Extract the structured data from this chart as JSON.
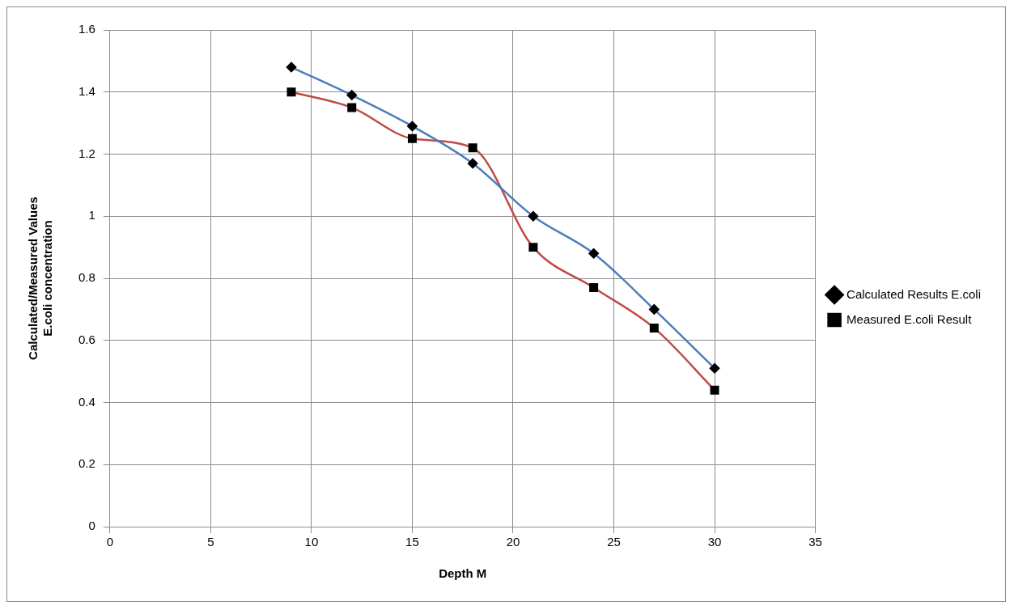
{
  "chart_data": {
    "type": "line",
    "xlabel": "Depth M",
    "ylabel": "Calculated/Measured Values\nE.coli concentration",
    "x": [
      9,
      12,
      15,
      18,
      21,
      24,
      27,
      30
    ],
    "series": [
      {
        "name": "Calculated Results E.coli",
        "color": "#4a7ebb",
        "marker": "diamond",
        "values": [
          1.48,
          1.39,
          1.29,
          1.17,
          1.0,
          0.88,
          0.7,
          0.51
        ]
      },
      {
        "name": "Measured E.coli Result",
        "color": "#be4b48",
        "marker": "square",
        "values": [
          1.4,
          1.35,
          1.25,
          1.22,
          0.9,
          0.77,
          0.64,
          0.44
        ]
      }
    ],
    "xlim": [
      0,
      35
    ],
    "xticks": [
      0,
      5,
      10,
      15,
      20,
      25,
      30,
      35
    ],
    "ylim": [
      0,
      1.6
    ],
    "yticks": [
      0,
      0.2,
      0.4,
      0.6,
      0.8,
      1,
      1.2,
      1.4,
      1.6
    ],
    "grid": true,
    "legend": "right"
  }
}
